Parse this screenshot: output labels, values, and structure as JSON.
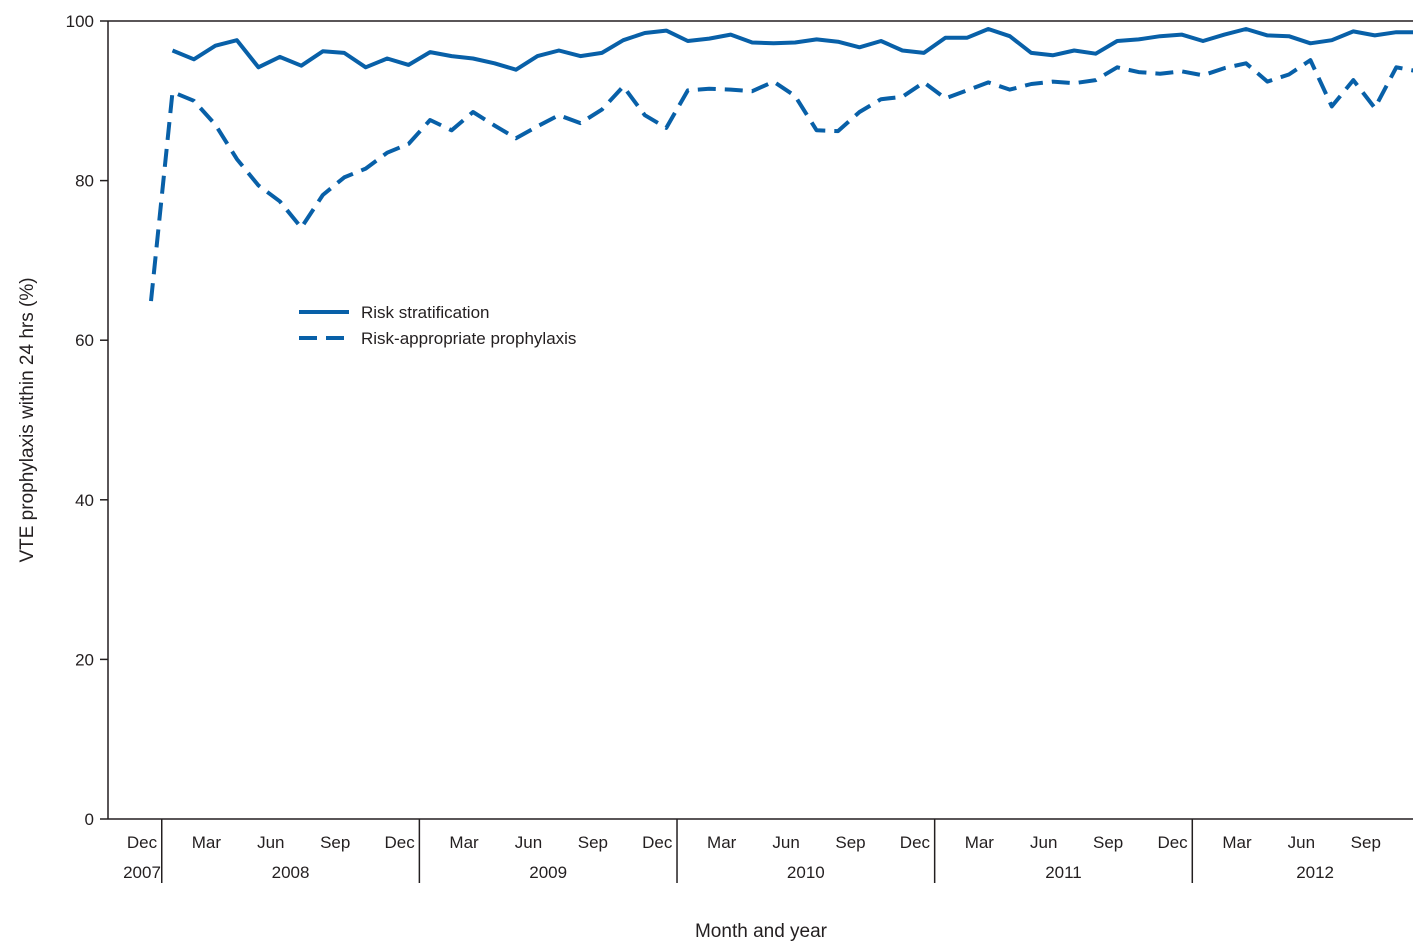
{
  "chart_data": {
    "type": "line",
    "xlabel": "Month and year",
    "ylabel": "VTE prophylaxis within 24 hrs (%)",
    "ylim": [
      0,
      100
    ],
    "y_ticks": [
      0,
      20,
      40,
      60,
      80,
      100
    ],
    "x_range": [
      "2007-12",
      "2012-11"
    ],
    "month_ticks": [
      {
        "label": "Dec",
        "date": "2007-12"
      },
      {
        "label": "Mar",
        "date": "2008-03"
      },
      {
        "label": "Jun",
        "date": "2008-06"
      },
      {
        "label": "Sep",
        "date": "2008-09"
      },
      {
        "label": "Dec",
        "date": "2008-12"
      },
      {
        "label": "Mar",
        "date": "2009-03"
      },
      {
        "label": "Jun",
        "date": "2009-06"
      },
      {
        "label": "Sep",
        "date": "2009-09"
      },
      {
        "label": "Dec",
        "date": "2009-12"
      },
      {
        "label": "Mar",
        "date": "2010-03"
      },
      {
        "label": "Jun",
        "date": "2010-06"
      },
      {
        "label": "Sep",
        "date": "2010-09"
      },
      {
        "label": "Dec",
        "date": "2010-12"
      },
      {
        "label": "Mar",
        "date": "2011-03"
      },
      {
        "label": "Jun",
        "date": "2011-06"
      },
      {
        "label": "Sep",
        "date": "2011-09"
      },
      {
        "label": "Dec",
        "date": "2011-12"
      },
      {
        "label": "Mar",
        "date": "2012-03"
      },
      {
        "label": "Jun",
        "date": "2012-06"
      },
      {
        "label": "Sep",
        "date": "2012-09"
      }
    ],
    "year_labels": [
      {
        "label": "2007",
        "start": "2007-12",
        "end": "2007-12"
      },
      {
        "label": "2008",
        "start": "2008-01",
        "end": "2008-12"
      },
      {
        "label": "2009",
        "start": "2009-01",
        "end": "2009-12"
      },
      {
        "label": "2010",
        "start": "2010-01",
        "end": "2010-12"
      },
      {
        "label": "2011",
        "start": "2011-01",
        "end": "2011-12"
      },
      {
        "label": "2012",
        "start": "2012-01",
        "end": "2012-11"
      }
    ],
    "grid": false,
    "legend": {
      "placement": "upper-left-inside"
    },
    "x": [
      "2007-12",
      "2008-01",
      "2008-02",
      "2008-03",
      "2008-04",
      "2008-05",
      "2008-06",
      "2008-07",
      "2008-08",
      "2008-09",
      "2008-10",
      "2008-11",
      "2008-12",
      "2009-01",
      "2009-02",
      "2009-03",
      "2009-04",
      "2009-05",
      "2009-06",
      "2009-07",
      "2009-08",
      "2009-09",
      "2009-10",
      "2009-11",
      "2009-12",
      "2010-01",
      "2010-02",
      "2010-03",
      "2010-04",
      "2010-05",
      "2010-06",
      "2010-07",
      "2010-08",
      "2010-09",
      "2010-10",
      "2010-11",
      "2010-12",
      "2011-01",
      "2011-02",
      "2011-03",
      "2011-04",
      "2011-05",
      "2011-06",
      "2011-07",
      "2011-08",
      "2011-09",
      "2011-10",
      "2011-11",
      "2011-12",
      "2012-01",
      "2012-02",
      "2012-03",
      "2012-04",
      "2012-05",
      "2012-06",
      "2012-07",
      "2012-08",
      "2012-09",
      "2012-10",
      "2012-11"
    ],
    "series": [
      {
        "name": "Risk stratification",
        "style": "solid",
        "color": "#0860a8",
        "values": [
          null,
          96.3,
          95.2,
          96.9,
          97.6,
          94.2,
          95.5,
          94.4,
          96.2,
          96.0,
          94.2,
          95.3,
          94.5,
          96.1,
          95.6,
          95.3,
          94.7,
          93.9,
          95.6,
          96.3,
          95.6,
          96.0,
          97.6,
          98.5,
          98.8,
          97.5,
          97.8,
          98.3,
          97.3,
          97.2,
          97.3,
          97.7,
          97.4,
          96.7,
          97.5,
          96.3,
          96.0,
          97.9,
          97.9,
          99.0,
          98.1,
          96.0,
          95.7,
          96.3,
          95.9,
          97.5,
          97.7,
          98.1,
          98.3,
          97.5,
          98.3,
          99.0,
          98.2,
          98.1,
          97.2,
          97.6,
          98.7,
          98.2,
          98.6,
          98.6
        ]
      },
      {
        "name": "Risk-appropriate prophylaxis",
        "style": "dashed",
        "color": "#0860a8",
        "values": [
          64.9,
          91.1,
          90.0,
          87.0,
          82.7,
          79.4,
          77.4,
          74.1,
          78.2,
          80.4,
          81.5,
          83.5,
          84.6,
          87.6,
          86.3,
          88.6,
          86.9,
          85.3,
          86.8,
          88.2,
          87.2,
          88.9,
          91.8,
          88.2,
          86.6,
          91.3,
          91.5,
          91.4,
          91.2,
          92.4,
          90.6,
          86.3,
          86.2,
          88.6,
          90.2,
          90.5,
          92.3,
          90.3,
          91.3,
          92.3,
          91.4,
          92.1,
          92.4,
          92.2,
          92.6,
          94.2,
          93.6,
          93.4,
          93.7,
          93.2,
          94.1,
          94.7,
          92.4,
          93.3,
          95.1,
          89.3,
          92.6,
          89.1,
          94.2,
          93.7
        ]
      }
    ]
  }
}
